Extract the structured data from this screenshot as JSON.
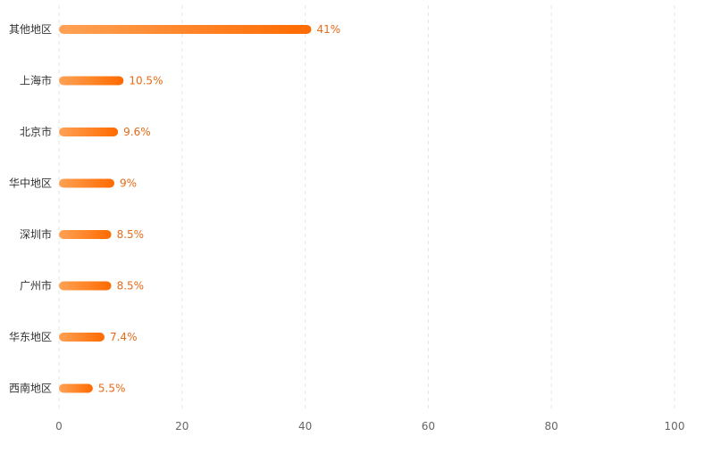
{
  "chart_data": {
    "type": "bar",
    "orientation": "horizontal",
    "categories": [
      "其他地区",
      "上海市",
      "北京市",
      "华中地区",
      "深圳市",
      "广州市",
      "华东地区",
      "西南地区"
    ],
    "values": [
      41,
      10.5,
      9.6,
      9,
      8.5,
      8.5,
      7.4,
      5.5
    ],
    "value_labels": [
      "41%",
      "10.5%",
      "9.6%",
      "9%",
      "8.5%",
      "8.5%",
      "7.4%",
      "5.5%"
    ],
    "x_ticks": [
      "0",
      "20",
      "40",
      "60",
      "80",
      "100"
    ],
    "xlim": [
      0,
      100
    ],
    "grid": "vertical dashed",
    "legend": "none",
    "title": "",
    "xlabel": "",
    "ylabel": ""
  },
  "colors": {
    "bar_start": "#ffa255",
    "bar_end": "#ff6a00",
    "value_label": "#e86a17",
    "category_label": "#333333",
    "tick_label": "#666666",
    "grid": "#e5e5e5"
  }
}
